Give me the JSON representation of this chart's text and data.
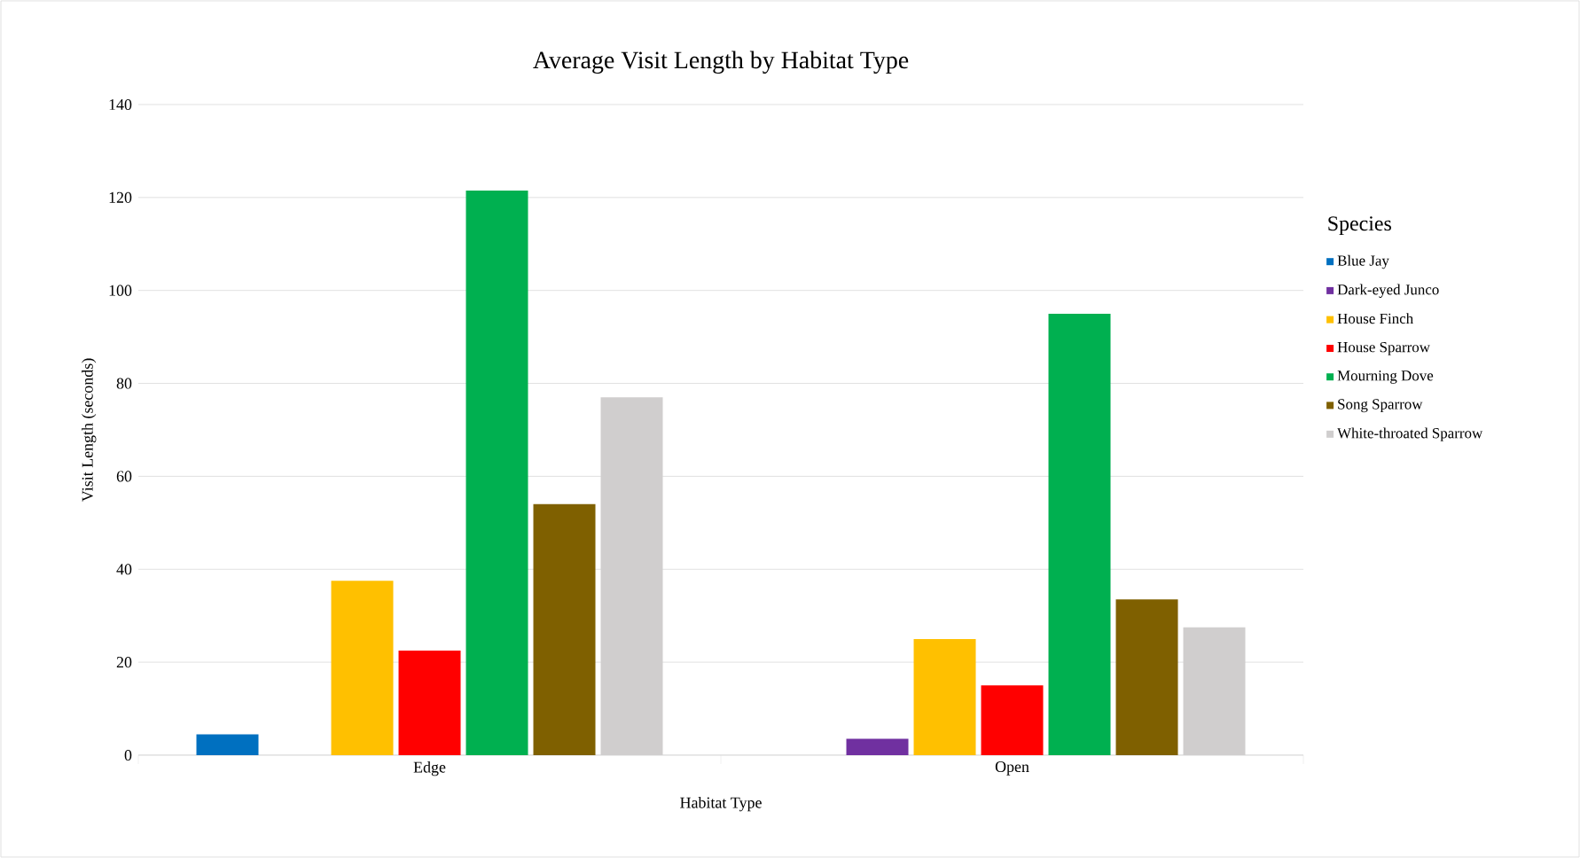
{
  "chart_data": {
    "type": "bar",
    "title": "Average Visit Length by Habitat Type",
    "xlabel": "Habitat Type",
    "ylabel": "Visit Length (seconds)",
    "legend_title": "Species",
    "categories": [
      "Edge",
      "Open"
    ],
    "series": [
      {
        "name": "Blue Jay",
        "color": "#0070c0",
        "values": [
          4.5,
          null
        ]
      },
      {
        "name": "Dark-eyed Junco",
        "color": "#7030a0",
        "values": [
          null,
          3.5
        ]
      },
      {
        "name": "House Finch",
        "color": "#ffc000",
        "values": [
          37.5,
          25
        ]
      },
      {
        "name": "House Sparrow",
        "color": "#ff0000",
        "values": [
          22.5,
          15
        ]
      },
      {
        "name": "Mourning Dove",
        "color": "#00b050",
        "values": [
          121.5,
          95
        ]
      },
      {
        "name": "Song Sparrow",
        "color": "#7f6000",
        "values": [
          54,
          33.5
        ]
      },
      {
        "name": "White-throated Sparrow",
        "color": "#d0cece",
        "values": [
          77,
          27.5
        ]
      }
    ],
    "ylim": [
      0,
      140
    ],
    "yticks": [
      0,
      20,
      40,
      60,
      80,
      100,
      120,
      140
    ],
    "grid": "y",
    "legend": "right"
  }
}
